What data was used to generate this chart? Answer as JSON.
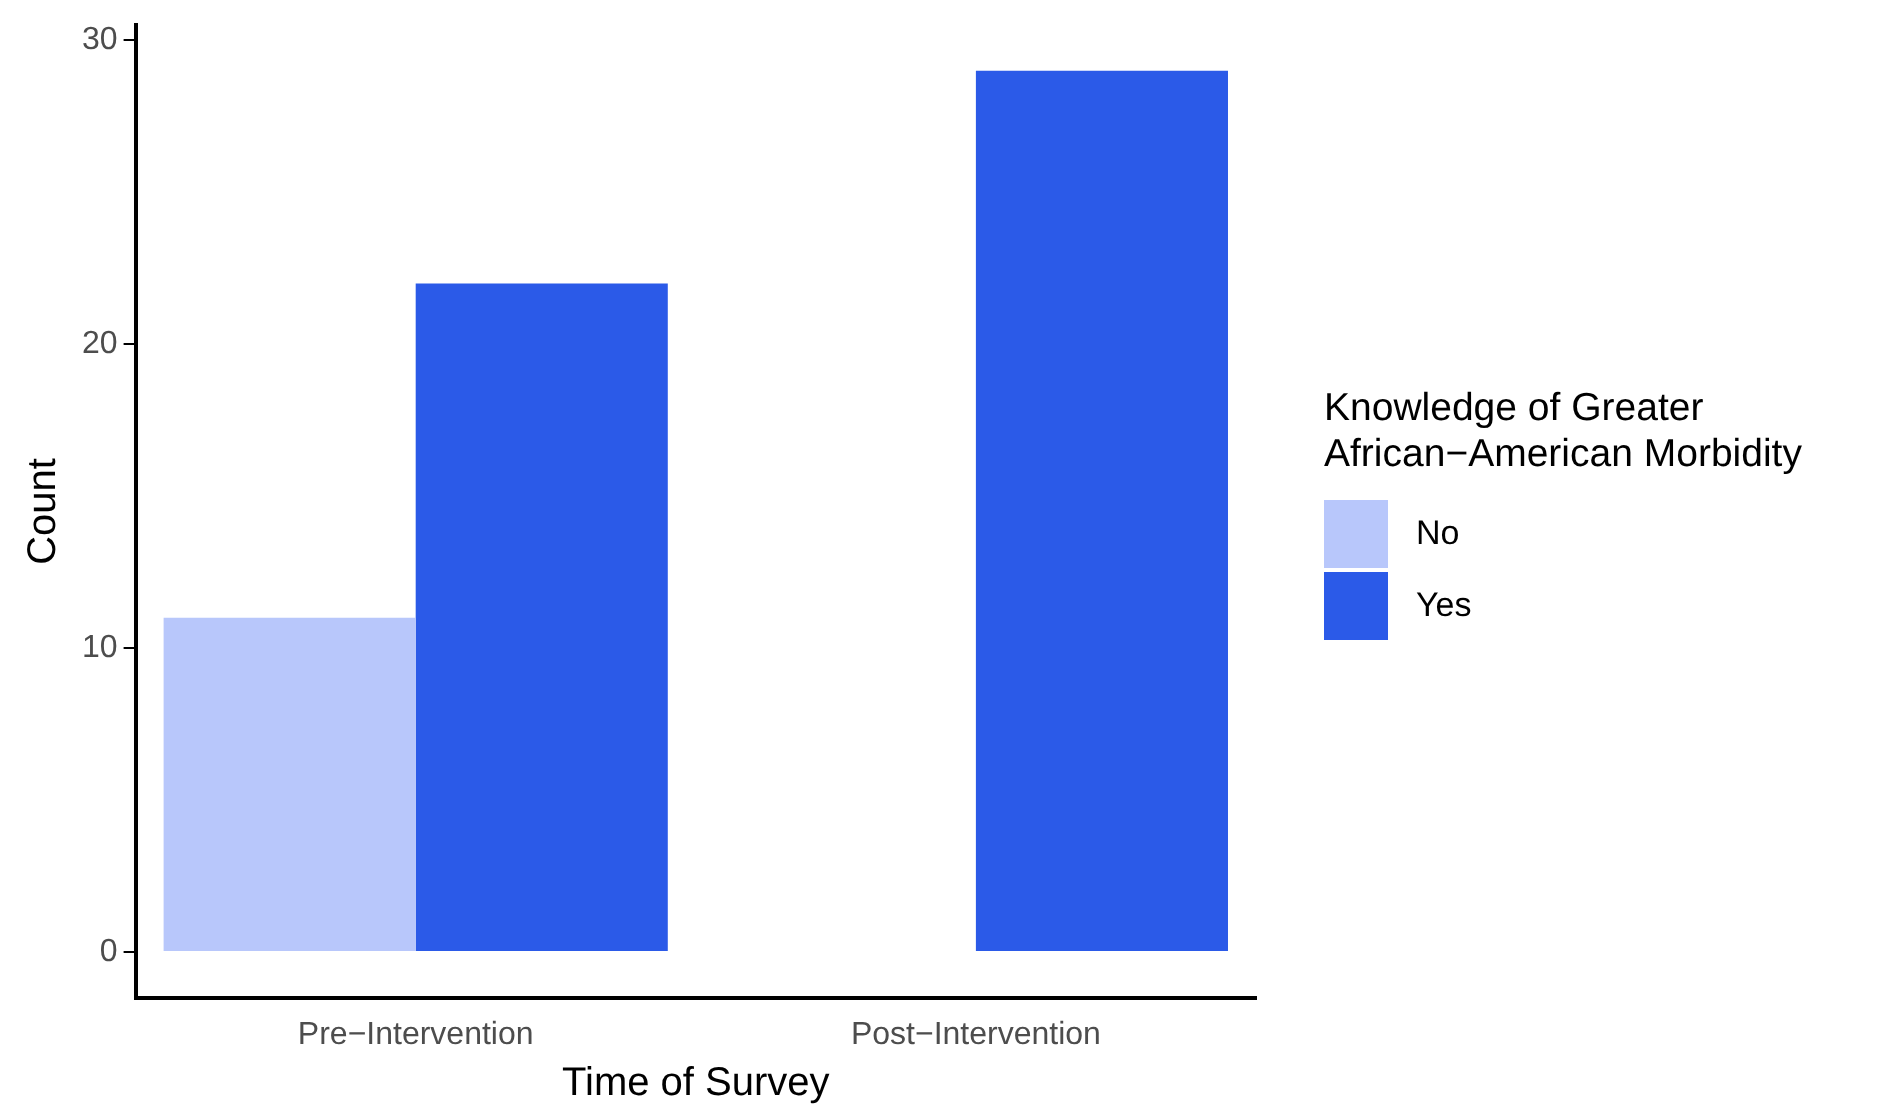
{
  "chart_data": {
    "type": "bar",
    "xlabel": "Time of Survey",
    "ylabel": "Count",
    "legend_title": "Knowledge of Greater African−American Morbidity",
    "categories": [
      "Pre−Intervention",
      "Post−Intervention"
    ],
    "series": [
      {
        "name": "No",
        "color": "#b8c7fb",
        "values": [
          11,
          null
        ]
      },
      {
        "name": "Yes",
        "color": "#2b5ae8",
        "values": [
          22,
          29
        ]
      }
    ],
    "ylim": [
      -1.5,
      30.5
    ],
    "yticks": [
      0,
      10,
      20,
      30
    ],
    "grid": false,
    "legend": "right"
  }
}
